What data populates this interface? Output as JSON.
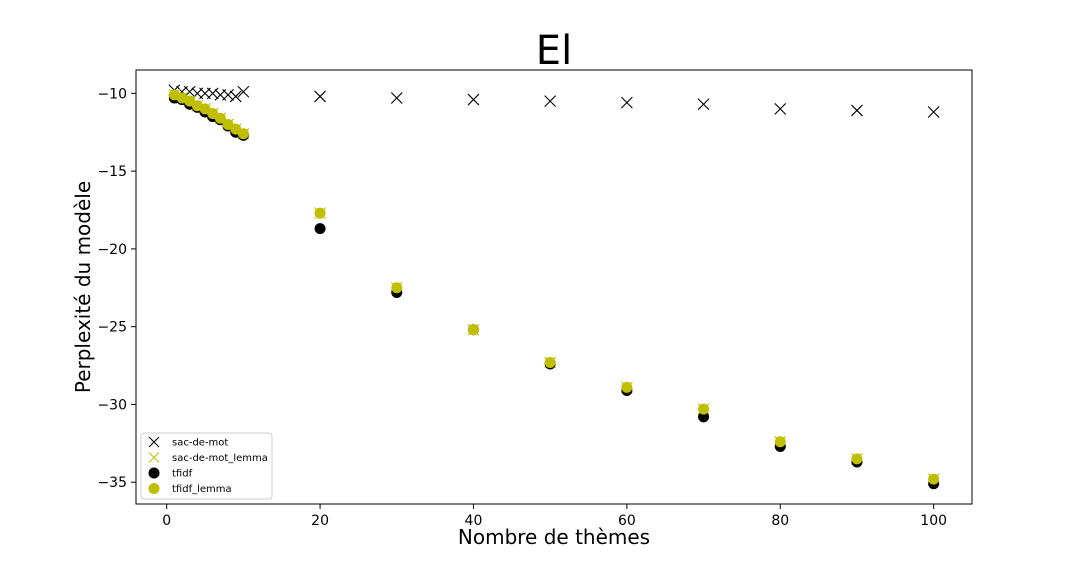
{
  "chart_data": {
    "type": "scatter",
    "title": "El",
    "xlabel": "Nombre de thèmes",
    "ylabel": "Perplexité du modèle",
    "xlim": [
      -4,
      105
    ],
    "ylim": [
      -36.4,
      -8.5
    ],
    "xticks": [
      0,
      20,
      40,
      60,
      80,
      100
    ],
    "yticks": [
      -35,
      -30,
      -25,
      -20,
      -15,
      -10
    ],
    "grid": false,
    "legend_position": "lower-left",
    "series": [
      {
        "name": "sac-de-mot",
        "marker": "x",
        "color": "#000000",
        "x": [
          1,
          2,
          3,
          4,
          5,
          6,
          7,
          8,
          9,
          10,
          20,
          30,
          40,
          50,
          60,
          70,
          80,
          90,
          100
        ],
        "y": [
          -9.8,
          -9.9,
          -9.9,
          -10.0,
          -10.0,
          -10.0,
          -10.1,
          -10.1,
          -10.2,
          -9.9,
          -10.2,
          -10.3,
          -10.4,
          -10.5,
          -10.6,
          -10.7,
          -11.0,
          -11.1,
          -11.2
        ]
      },
      {
        "name": "sac-de-mot_lemma",
        "marker": "x",
        "color": "#bfbf00",
        "x": [
          1,
          2,
          3,
          4,
          5,
          6,
          7,
          8,
          9,
          10,
          20,
          30,
          40,
          50,
          60,
          70,
          80,
          90,
          100
        ],
        "y": [
          -10.1,
          -10.3,
          -10.5,
          -10.8,
          -11.0,
          -11.3,
          -11.6,
          -12.0,
          -12.3,
          -12.6,
          -17.7,
          -22.5,
          -25.2,
          -27.3,
          -28.9,
          -30.3,
          -32.4,
          -33.5,
          -34.8
        ]
      },
      {
        "name": "tfidf",
        "marker": "o",
        "color": "#000000",
        "x": [
          1,
          2,
          3,
          4,
          5,
          6,
          7,
          8,
          9,
          10,
          20,
          30,
          40,
          50,
          60,
          70,
          80,
          90,
          100
        ],
        "y": [
          -10.3,
          -10.4,
          -10.7,
          -10.9,
          -11.2,
          -11.5,
          -11.7,
          -12.1,
          -12.5,
          -12.7,
          -18.7,
          -22.8,
          -25.2,
          -27.4,
          -29.1,
          -30.8,
          -32.7,
          -33.7,
          -35.1
        ]
      },
      {
        "name": "tfidf_lemma",
        "marker": "o",
        "color": "#bfbf00",
        "x": [
          1,
          2,
          3,
          4,
          5,
          6,
          7,
          8,
          9,
          10,
          20,
          30,
          40,
          50,
          60,
          70,
          80,
          90,
          100
        ],
        "y": [
          -10.1,
          -10.3,
          -10.5,
          -10.8,
          -11.0,
          -11.3,
          -11.6,
          -12.0,
          -12.3,
          -12.6,
          -17.7,
          -22.5,
          -25.2,
          -27.3,
          -28.9,
          -30.3,
          -32.4,
          -33.5,
          -34.8
        ]
      }
    ]
  }
}
